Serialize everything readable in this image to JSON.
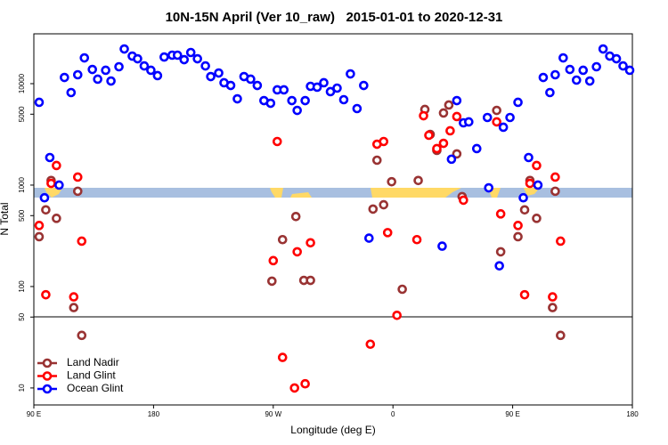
{
  "chart_data": {
    "type": "scatter",
    "title": "10N-15N April (Ver 10_raw)   2015-01-01 to 2020-12-31",
    "x_label": "Longitude (deg E)",
    "y_label": "N Total",
    "log_y": true,
    "legend": "lower left",
    "xlim": [
      90,
      540
    ],
    "ylim": [
      6.8,
      31000
    ],
    "xticks": [
      {
        "value": 90,
        "label": "90 E"
      },
      {
        "value": 180,
        "label": "180"
      },
      {
        "value": 270,
        "label": "90 W"
      },
      {
        "value": 360,
        "label": "0"
      },
      {
        "value": 450,
        "label": "90 E"
      },
      {
        "value": 540,
        "label": "180"
      }
    ],
    "yticks": [
      10,
      50,
      100,
      500,
      1000,
      5000,
      10000
    ],
    "series": [
      {
        "name": "Land Nadir",
        "color": "#993333",
        "x": [
          94,
          99,
          103,
          107,
          123,
          126,
          120,
          269,
          277,
          287,
          293,
          298,
          345,
          348,
          353,
          359,
          367,
          379,
          384,
          388,
          393,
          398,
          402,
          408,
          412,
          438,
          441,
          454,
          459,
          463,
          468,
          482,
          486,
          480
        ],
        "values": [
          310,
          570,
          1110,
          470,
          870,
          33,
          62,
          113,
          290,
          490,
          115,
          115,
          580,
          1760,
          640,
          1080,
          94,
          1110,
          5570,
          3160,
          2200,
          5140,
          6160,
          2030,
          770,
          5450,
          220,
          310,
          570,
          1110,
          470,
          870,
          33,
          62
        ]
      },
      {
        "name": "Land Glint",
        "color": "#ff0000",
        "x": [
          94,
          99,
          103,
          107,
          123,
          126,
          120,
          273,
          270,
          277,
          286,
          294,
          288,
          298,
          348,
          353,
          356,
          363,
          343,
          378,
          383,
          387,
          393,
          398,
          403,
          408,
          413,
          438,
          441,
          454,
          459,
          463,
          468,
          482,
          486,
          480
        ],
        "values": [
          400,
          83,
          1040,
          1560,
          1200,
          280,
          79,
          2690,
          180,
          20,
          10,
          11,
          220,
          270,
          2530,
          2690,
          340,
          52,
          27,
          290,
          4830,
          3100,
          2290,
          2580,
          3430,
          4740,
          710,
          4200,
          520,
          400,
          83,
          1040,
          1560,
          1200,
          280,
          79
        ]
      },
      {
        "name": "Ocean Glint",
        "color": "#0000ff",
        "x": [
          94,
          98,
          102,
          109,
          113,
          118,
          123,
          128,
          134,
          138,
          144,
          148,
          154,
          158,
          164,
          168,
          173,
          178,
          183,
          188,
          194,
          198,
          203,
          208,
          213,
          219,
          223,
          229,
          233,
          238,
          243,
          248,
          253,
          258,
          263,
          268,
          273,
          278,
          284,
          288,
          294,
          298,
          303,
          308,
          313,
          318,
          323,
          328,
          333,
          338,
          342,
          397,
          404,
          408,
          413,
          417,
          423,
          431,
          432,
          440,
          443,
          448,
          454,
          458,
          462,
          469,
          473,
          478,
          482,
          488,
          493,
          498,
          503,
          508,
          513,
          518,
          523,
          528,
          533,
          538
        ],
        "values": [
          6550,
          750,
          1870,
          1000,
          11510,
          8170,
          12240,
          17950,
          13800,
          11070,
          13550,
          10620,
          14680,
          21980,
          18700,
          17600,
          14960,
          13550,
          12000,
          18300,
          19090,
          19090,
          17250,
          20280,
          17600,
          14960,
          11750,
          12740,
          10210,
          9600,
          7090,
          11750,
          11070,
          9600,
          6810,
          6410,
          8690,
          8690,
          6810,
          5450,
          6810,
          9410,
          9230,
          10210,
          8340,
          9040,
          6950,
          12480,
          5680,
          9600,
          300,
          250,
          1800,
          6810,
          4110,
          4200,
          2290,
          4640,
          940,
          160,
          3720,
          4640,
          6550,
          750,
          1870,
          1000,
          11510,
          8170,
          12240,
          17950,
          13800,
          10840,
          13550,
          10620,
          14680,
          21980,
          18700,
          17600,
          14960,
          13550
        ]
      }
    ]
  }
}
